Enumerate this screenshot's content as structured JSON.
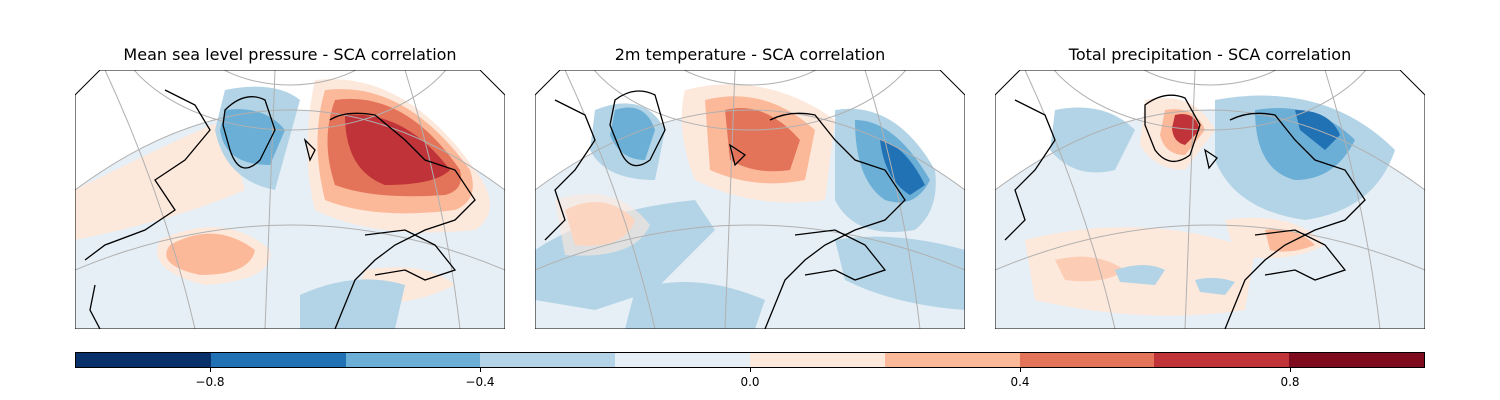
{
  "panels": [
    {
      "title": "Mean sea level pressure - SCA correlation"
    },
    {
      "title": "2m temperature - SCA correlation"
    },
    {
      "title": "Total precipitation - SCA correlation"
    }
  ],
  "colorbar": {
    "range": [
      -1.0,
      1.0
    ],
    "bin_width": 0.2,
    "colors": [
      "#08306b",
      "#2171b5",
      "#6baed6",
      "#b3d4e6",
      "#e6eff6",
      "#fde8dc",
      "#fbb99a",
      "#e37459",
      "#c03338",
      "#7f0b1e"
    ],
    "tick_values": [
      -0.8,
      -0.4,
      0.0,
      0.4,
      0.8
    ],
    "tick_labels": [
      "−0.8",
      "−0.4",
      "0.0",
      "0.4",
      "0.8"
    ]
  }
}
